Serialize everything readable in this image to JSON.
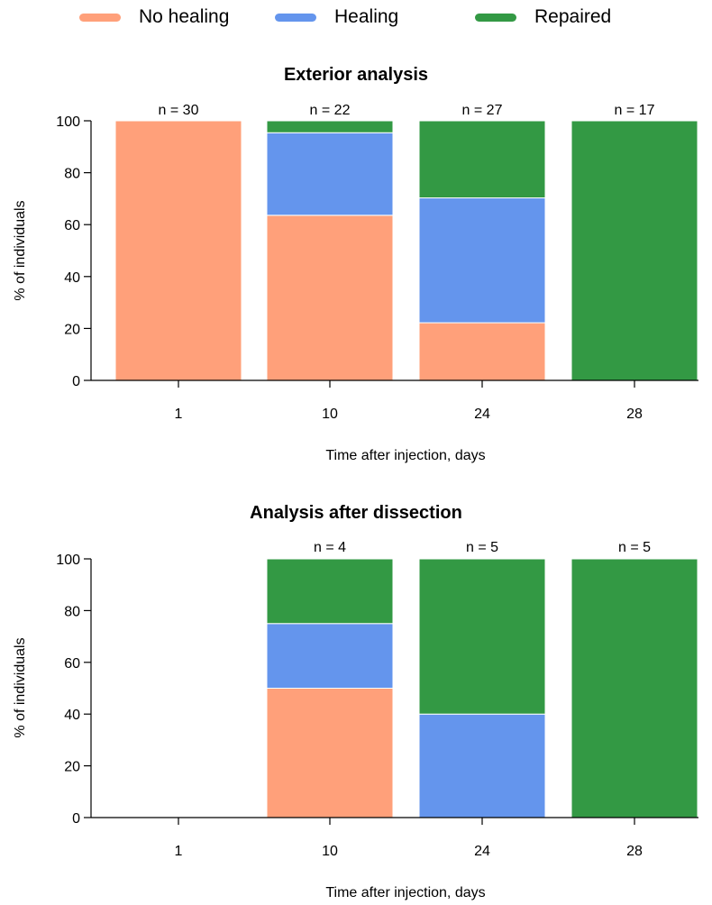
{
  "legend": {
    "no_healing": {
      "label": "No healing",
      "color": "#ffa07a"
    },
    "healing": {
      "label": "Healing",
      "color": "#6495ed"
    },
    "repaired": {
      "label": "Repaired",
      "color": "#339944"
    }
  },
  "chart_data": [
    {
      "type": "bar",
      "stacked": true,
      "title": "Exterior analysis",
      "xlabel": "Time after injection, days",
      "ylabel": "% of individuals",
      "ylim": [
        0,
        100
      ],
      "yticks": [
        0,
        20,
        40,
        60,
        80,
        100
      ],
      "categories": [
        "1",
        "10",
        "24",
        "28"
      ],
      "n_labels": [
        "n = 30",
        "n = 22",
        "n = 27",
        "n = 17"
      ],
      "series": [
        {
          "name": "No healing",
          "color": "#ffa07a",
          "values": [
            100,
            63.6,
            22.2,
            0
          ]
        },
        {
          "name": "Healing",
          "color": "#6495ed",
          "values": [
            0,
            31.8,
            48.1,
            0
          ]
        },
        {
          "name": "Repaired",
          "color": "#339944",
          "values": [
            0,
            4.6,
            29.7,
            100
          ]
        }
      ]
    },
    {
      "type": "bar",
      "stacked": true,
      "title": "Analysis after dissection",
      "xlabel": "Time after injection, days",
      "ylabel": "% of individuals",
      "ylim": [
        0,
        100
      ],
      "yticks": [
        0,
        20,
        40,
        60,
        80,
        100
      ],
      "categories": [
        "1",
        "10",
        "24",
        "28"
      ],
      "n_labels": [
        "",
        "n = 4",
        "n = 5",
        "n = 5"
      ],
      "series": [
        {
          "name": "No healing",
          "color": "#ffa07a",
          "values": [
            0,
            50,
            0,
            0
          ]
        },
        {
          "name": "Healing",
          "color": "#6495ed",
          "values": [
            0,
            25,
            40,
            0
          ]
        },
        {
          "name": "Repaired",
          "color": "#339944",
          "values": [
            0,
            25,
            60,
            100
          ]
        }
      ]
    }
  ]
}
